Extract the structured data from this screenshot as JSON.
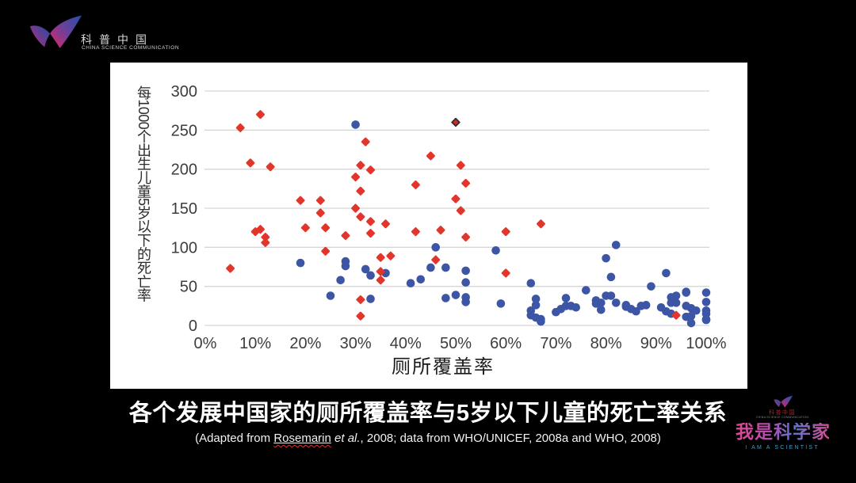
{
  "slide": {
    "background_color": "#000000",
    "header_logo": {
      "cn_label": "科普中国",
      "en_label": "CHINA SCIENCE COMMUNICATION"
    },
    "caption": {
      "title": "各个发展中国家的厕所覆盖率与5岁以下儿童的死亡率关系",
      "citation_prefix": "(Adapted from ",
      "citation_author": "Rosemarin",
      "citation_space": " ",
      "citation_etal": "et al.",
      "citation_suffix": ", 2008; data from WHO/UNICEF, 2008a and WHO, 2008)"
    },
    "brand": {
      "mini_cn": "科普中国",
      "mini_en": "CHINA SCIENCE COMMUNICATION",
      "wordmark": "我是科学家",
      "tagline": "I AM A SCIENTIST"
    }
  },
  "chart_data": {
    "type": "scatter",
    "xlabel": "厕所覆盖率",
    "ylabel": "每1000个出生儿童5岁以下的死亡率",
    "xlim": [
      0,
      100
    ],
    "ylim": [
      0,
      300
    ],
    "x_ticks": [
      0,
      10,
      20,
      30,
      40,
      50,
      60,
      70,
      80,
      90,
      100
    ],
    "x_tick_labels": [
      "0%",
      "10%",
      "20%",
      "30%",
      "40%",
      "50%",
      "60%",
      "70%",
      "80%",
      "90%",
      "100%"
    ],
    "y_ticks": [
      0,
      50,
      100,
      150,
      200,
      250,
      300
    ],
    "grid": true,
    "legend": "none",
    "style": {
      "grid_color": "#d6d6d6",
      "tick_color": "#3d3d3d",
      "axis_title_color": "#1a1a1a",
      "background": "#ffffff"
    },
    "series": [
      {
        "name": "blue-circle-countries",
        "marker": "circle",
        "color": "#3c55a5",
        "points": [
          [
            19,
            80
          ],
          [
            25,
            38
          ],
          [
            27,
            58
          ],
          [
            28,
            82
          ],
          [
            28,
            76
          ],
          [
            30,
            257
          ],
          [
            32,
            72
          ],
          [
            33,
            64
          ],
          [
            33,
            34
          ],
          [
            36,
            67
          ],
          [
            41,
            54
          ],
          [
            43,
            59
          ],
          [
            45,
            74
          ],
          [
            46,
            100
          ],
          [
            48,
            74
          ],
          [
            48,
            35
          ],
          [
            50,
            39
          ],
          [
            52,
            70
          ],
          [
            52,
            55
          ],
          [
            52,
            36
          ],
          [
            52,
            30
          ],
          [
            58,
            96
          ],
          [
            59,
            28
          ],
          [
            65,
            54
          ],
          [
            65,
            19
          ],
          [
            65,
            13
          ],
          [
            66,
            34
          ],
          [
            66,
            26
          ],
          [
            66,
            10
          ],
          [
            67,
            8
          ],
          [
            67,
            5
          ],
          [
            70,
            17
          ],
          [
            71,
            21
          ],
          [
            72,
            35
          ],
          [
            72,
            25
          ],
          [
            73,
            25
          ],
          [
            74,
            23
          ],
          [
            76,
            45
          ],
          [
            78,
            32
          ],
          [
            78,
            28
          ],
          [
            79,
            29
          ],
          [
            79,
            20
          ],
          [
            80,
            86
          ],
          [
            80,
            38
          ],
          [
            81,
            62
          ],
          [
            81,
            38
          ],
          [
            82,
            103
          ],
          [
            82,
            29
          ],
          [
            84,
            26
          ],
          [
            84,
            24
          ],
          [
            85,
            21
          ],
          [
            86,
            18
          ],
          [
            87,
            25
          ],
          [
            88,
            26
          ],
          [
            89,
            50
          ],
          [
            91,
            23
          ],
          [
            92,
            67
          ],
          [
            92,
            18
          ],
          [
            93,
            15
          ],
          [
            93,
            36
          ],
          [
            93,
            29
          ],
          [
            94,
            38
          ],
          [
            94,
            29
          ],
          [
            96,
            43
          ],
          [
            96,
            42
          ],
          [
            96,
            25
          ],
          [
            96,
            11
          ],
          [
            97,
            22
          ],
          [
            97,
            12
          ],
          [
            97,
            3
          ],
          [
            98,
            19
          ],
          [
            100,
            42
          ],
          [
            100,
            30
          ],
          [
            100,
            19
          ],
          [
            100,
            15
          ],
          [
            100,
            8
          ],
          [
            100,
            7
          ]
        ]
      },
      {
        "name": "red-diamond-countries",
        "marker": "diamond",
        "color": "#e2352b",
        "points": [
          [
            5,
            73
          ],
          [
            7,
            253
          ],
          [
            9,
            208
          ],
          [
            10,
            120
          ],
          [
            11,
            270
          ],
          [
            11,
            123
          ],
          [
            12,
            113
          ],
          [
            12,
            106
          ],
          [
            13,
            203
          ],
          [
            19,
            160
          ],
          [
            20,
            125
          ],
          [
            23,
            160
          ],
          [
            23,
            144
          ],
          [
            24,
            125
          ],
          [
            24,
            95
          ],
          [
            28,
            115
          ],
          [
            30,
            190
          ],
          [
            30,
            150
          ],
          [
            31,
            205
          ],
          [
            31,
            172
          ],
          [
            31,
            139
          ],
          [
            31,
            33
          ],
          [
            31,
            12
          ],
          [
            32,
            235
          ],
          [
            33,
            199
          ],
          [
            33,
            133
          ],
          [
            33,
            118
          ],
          [
            35,
            87
          ],
          [
            35,
            69
          ],
          [
            35,
            58
          ],
          [
            36,
            130
          ],
          [
            37,
            89
          ],
          [
            42,
            180
          ],
          [
            42,
            120
          ],
          [
            45,
            217
          ],
          [
            46,
            84
          ],
          [
            47,
            122
          ],
          [
            50,
            162
          ],
          [
            51,
            205
          ],
          [
            51,
            147
          ],
          [
            52,
            182
          ],
          [
            52,
            113
          ],
          [
            60,
            120
          ],
          [
            60,
            67
          ],
          [
            67,
            130
          ],
          [
            94,
            13
          ]
        ]
      },
      {
        "name": "red-diamond-outlined",
        "marker": "diamond",
        "color": "#cf2b24",
        "stroke": "#2f2f2f",
        "points": [
          [
            50,
            260
          ]
        ]
      }
    ]
  }
}
